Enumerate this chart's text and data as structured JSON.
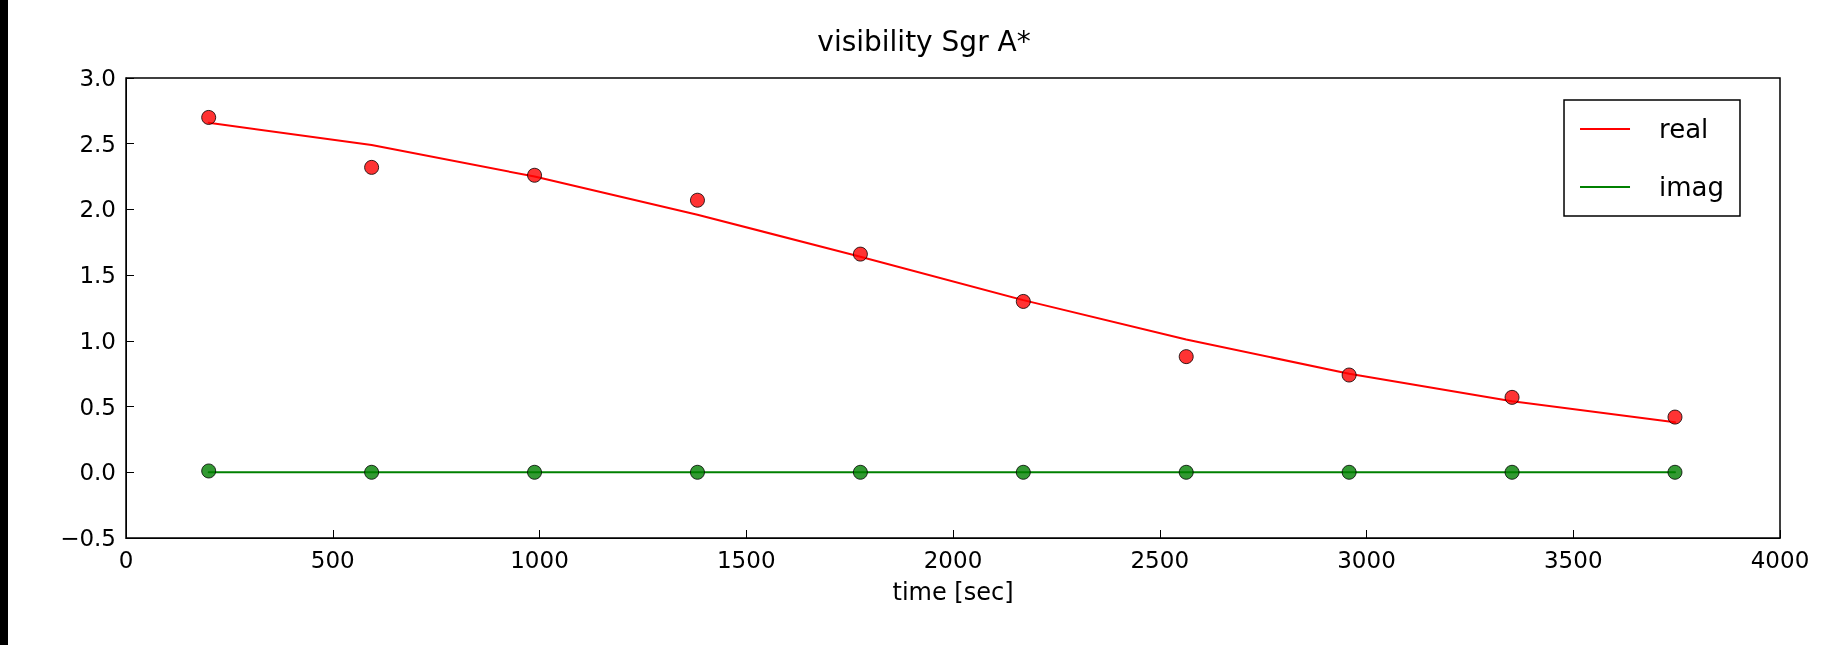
{
  "chart_data": {
    "type": "line",
    "title": "visibility Sgr A*",
    "xlabel": "time [sec]",
    "x": [
      200,
      594,
      988,
      1382,
      1776,
      2170,
      2564,
      2958,
      3352,
      3746
    ],
    "series": [
      {
        "name": "real",
        "marker": "none",
        "color": "#ff0000",
        "values": [
          2.66,
          2.49,
          2.25,
          1.96,
          1.64,
          1.31,
          1.01,
          0.75,
          0.54,
          0.38
        ]
      },
      {
        "name": "imag",
        "marker": "none",
        "color": "#008000",
        "values": [
          0.0,
          0.0,
          0.0,
          0.0,
          0.0,
          0.0,
          0.0,
          0.0,
          0.0,
          0.0
        ]
      },
      {
        "type": "scatter",
        "marker": "circle",
        "color": "#ff0000",
        "values": [
          2.7,
          2.32,
          2.26,
          2.07,
          1.66,
          1.3,
          0.88,
          0.74,
          0.57,
          0.42
        ]
      },
      {
        "type": "scatter",
        "marker": "circle",
        "color": "#008000",
        "values": [
          0.01,
          0.0,
          0.0,
          0.0,
          0.0,
          0.0,
          0.0,
          0.0,
          0.0,
          0.0
        ]
      }
    ],
    "xlim": [
      0,
      4000
    ],
    "xticks": [
      0,
      500,
      1000,
      1500,
      2000,
      2500,
      3000,
      3500,
      4000
    ],
    "ylim": [
      -0.5,
      3.0
    ],
    "yticks": [
      {
        "value": -0.5,
        "label": "−0.5"
      },
      {
        "value": 0,
        "label": "0.0"
      },
      {
        "value": 0.5,
        "label": "0.5"
      },
      {
        "value": 1,
        "label": "1.0"
      },
      {
        "value": 1.5,
        "label": "1.5"
      },
      {
        "value": 2,
        "label": "2.0"
      },
      {
        "value": 2.5,
        "label": "2.5"
      },
      {
        "value": 3,
        "label": "3.0"
      }
    ],
    "grid": false,
    "legend": "top right",
    "line_style": "solid"
  }
}
